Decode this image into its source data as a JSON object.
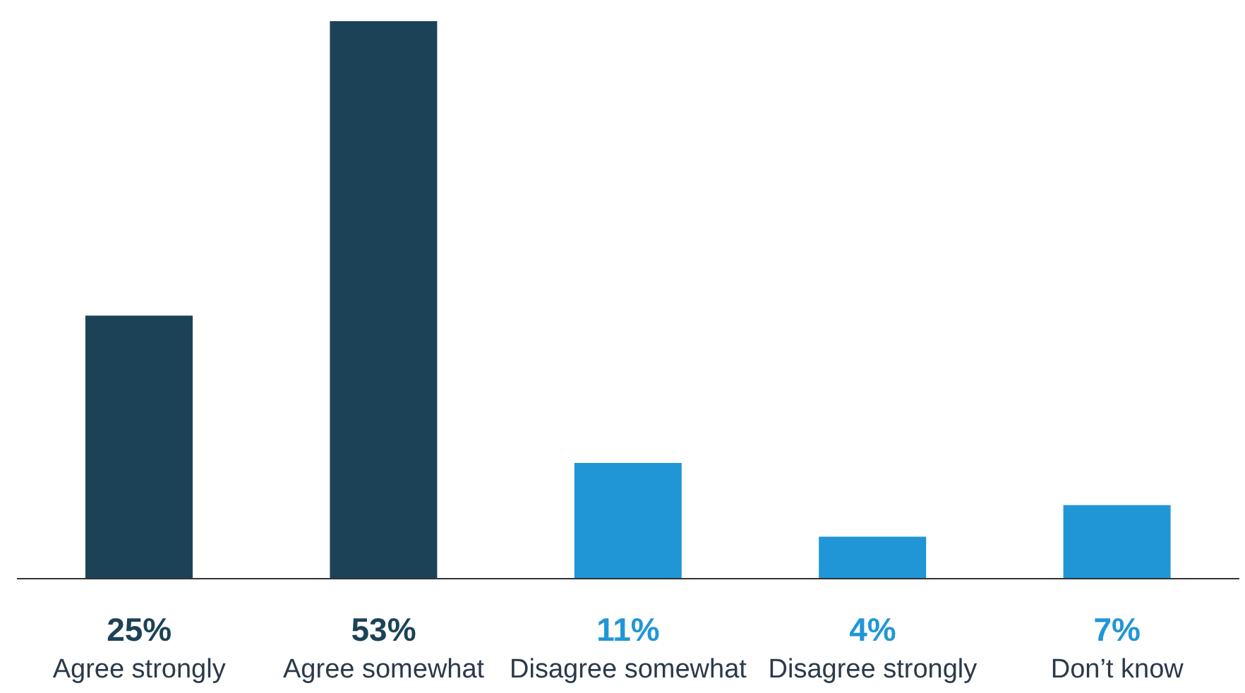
{
  "chart_data": {
    "type": "bar",
    "categories": [
      "Agree strongly",
      "Agree somewhat",
      "Disagree somewhat",
      "Disagree strongly",
      "Don’t know"
    ],
    "values": [
      25,
      53,
      11,
      4,
      7
    ],
    "value_labels": [
      "25%",
      "53%",
      "11%",
      "4%",
      "7%"
    ],
    "colors": [
      "#1c4257",
      "#1c4257",
      "#2196d6",
      "#2196d6",
      "#2196d6"
    ],
    "ylim": [
      0,
      53
    ],
    "tick_labels": "x"
  }
}
